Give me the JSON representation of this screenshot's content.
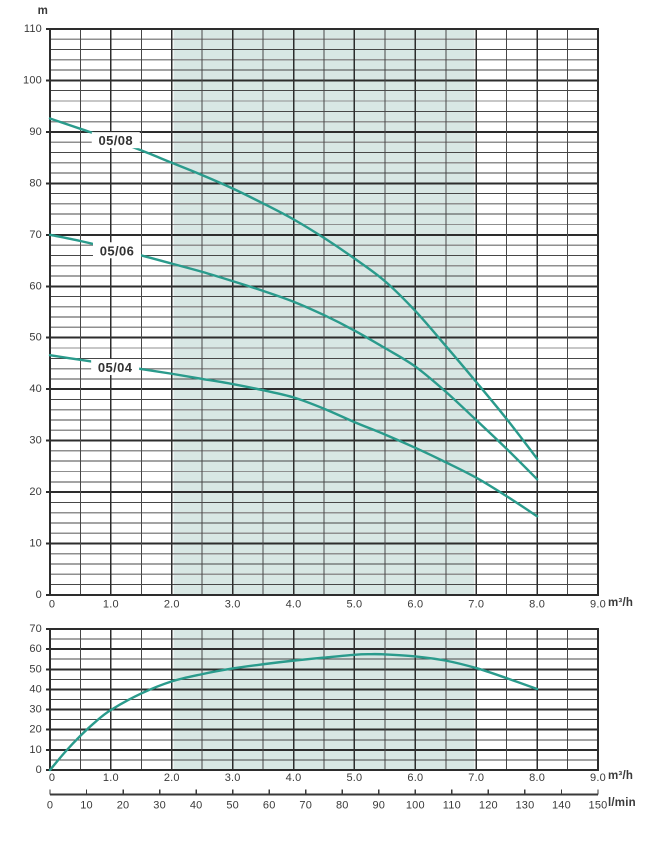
{
  "style": {
    "curve_color": "#2a9b8c",
    "band_color": "#d8e7e4",
    "grid_minor_color": "#474747",
    "grid_mid_color": "#8f8f8f",
    "grid_major_color": "#2d2d2d",
    "text_color": "#3a3a3a",
    "label_text_color": "#333333"
  },
  "chart_data": [
    {
      "type": "line",
      "title": "",
      "ylabel": "m",
      "xlabel": "m³/h",
      "xlim": [
        0,
        9
      ],
      "ylim": [
        0,
        110
      ],
      "grid": true,
      "x_minor_step": 0.5,
      "y_minor_step": 2,
      "band": {
        "from": 2.03,
        "to": 6.97
      },
      "x_ticks": {
        "values": [
          0,
          1,
          2,
          3,
          4,
          5,
          6,
          7,
          8,
          9
        ],
        "labels": [
          "0",
          "1.0",
          "2.0",
          "3.0",
          "4.0",
          "5.0",
          "6.0",
          "7.0",
          "8.0",
          "9.0"
        ]
      },
      "y_ticks": {
        "values": [
          0,
          10,
          20,
          30,
          40,
          50,
          60,
          70,
          80,
          90,
          100,
          110
        ],
        "labels": [
          "0",
          "10",
          "20",
          "30",
          "40",
          "50",
          "60",
          "70",
          "80",
          "90",
          "100",
          "110"
        ]
      },
      "series": [
        {
          "name": "05/08",
          "label_at": {
            "x": 1.08,
            "y": 88.4
          },
          "points": [
            [
              0,
              92.6
            ],
            [
              0.5,
              90.6
            ],
            [
              1,
              88.6
            ],
            [
              1.5,
              86.4
            ],
            [
              2,
              84
            ],
            [
              2.5,
              81.6
            ],
            [
              3,
              79
            ],
            [
              3.5,
              76.1
            ],
            [
              4,
              73
            ],
            [
              4.5,
              69.4
            ],
            [
              5,
              65.4
            ],
            [
              5.5,
              61
            ],
            [
              6,
              55.2
            ],
            [
              6.5,
              48.4
            ],
            [
              7,
              41.4
            ],
            [
              7.5,
              34.2
            ],
            [
              8,
              26.5
            ]
          ]
        },
        {
          "name": "05/06",
          "label_at": {
            "x": 1.1,
            "y": 67.0
          },
          "points": [
            [
              0,
              70
            ],
            [
              0.5,
              68.8
            ],
            [
              1,
              67.4
            ],
            [
              1.5,
              66
            ],
            [
              2,
              64.4
            ],
            [
              2.5,
              62.8
            ],
            [
              3,
              61
            ],
            [
              3.5,
              59.1
            ],
            [
              4,
              57
            ],
            [
              4.5,
              54.4
            ],
            [
              5,
              51.4
            ],
            [
              5.5,
              48
            ],
            [
              6,
              44.4
            ],
            [
              6.5,
              39.5
            ],
            [
              7,
              34
            ],
            [
              7.5,
              28.4
            ],
            [
              8,
              22.5
            ]
          ]
        },
        {
          "name": "05/04",
          "label_at": {
            "x": 1.07,
            "y": 44.3
          },
          "points": [
            [
              0,
              46.6
            ],
            [
              0.5,
              45.7
            ],
            [
              1,
              44.8
            ],
            [
              1.5,
              43.9
            ],
            [
              2,
              43
            ],
            [
              2.5,
              42
            ],
            [
              3,
              41
            ],
            [
              3.5,
              39.8
            ],
            [
              4,
              38.4
            ],
            [
              4.5,
              36.2
            ],
            [
              5,
              33.6
            ],
            [
              5.5,
              31.2
            ],
            [
              6,
              28.6
            ],
            [
              6.5,
              25.8
            ],
            [
              7,
              22.8
            ],
            [
              7.5,
              19.2
            ],
            [
              8,
              15.3
            ]
          ]
        }
      ]
    },
    {
      "type": "line",
      "title": "",
      "ylabel": "",
      "xlabel": "m³/h",
      "xlabel2": "l/min",
      "xlim": [
        0,
        9
      ],
      "ylim": [
        0,
        70
      ],
      "grid": true,
      "x_minor_step": 0.5,
      "y_minor_step": 5,
      "band": {
        "from": 2.03,
        "to": 6.97
      },
      "x_ticks": {
        "values": [
          0,
          1,
          2,
          3,
          4,
          5,
          6,
          7,
          8,
          9
        ],
        "labels": [
          "0",
          "1.0",
          "2.0",
          "3.0",
          "4.0",
          "5.0",
          "6.0",
          "7.0",
          "8.0",
          "9.0"
        ]
      },
      "y_ticks": {
        "values": [
          0,
          10,
          20,
          30,
          40,
          50,
          60,
          70
        ],
        "labels": [
          "0",
          "10",
          "20",
          "30",
          "40",
          "50",
          "60",
          "70"
        ]
      },
      "x2_axis": {
        "unit": "l/min",
        "max": 150,
        "tick_values": [
          0,
          10,
          20,
          30,
          40,
          50,
          60,
          70,
          80,
          90,
          100,
          110,
          120,
          130,
          140,
          150
        ],
        "tick_labels": [
          "0",
          "10",
          "20",
          "30",
          "40",
          "50",
          "60",
          "70",
          "80",
          "90",
          "100",
          "110",
          "120",
          "130",
          "140",
          "150"
        ]
      },
      "series": [
        {
          "name": "",
          "label_at": null,
          "points": [
            [
              0,
              0
            ],
            [
              0.25,
              9
            ],
            [
              0.5,
              17
            ],
            [
              0.75,
              24
            ],
            [
              1,
              29.8
            ],
            [
              1.5,
              38
            ],
            [
              2,
              44
            ],
            [
              2.5,
              47.6
            ],
            [
              3,
              50.4
            ],
            [
              3.5,
              52.5
            ],
            [
              4,
              54.3
            ],
            [
              4.5,
              55.8
            ],
            [
              5,
              57.2
            ],
            [
              5.25,
              57.5
            ],
            [
              5.5,
              57.4
            ],
            [
              6,
              56.4
            ],
            [
              6.5,
              54.3
            ],
            [
              7,
              50.6
            ],
            [
              7.5,
              45.6
            ],
            [
              8,
              40.2
            ]
          ]
        }
      ]
    }
  ]
}
